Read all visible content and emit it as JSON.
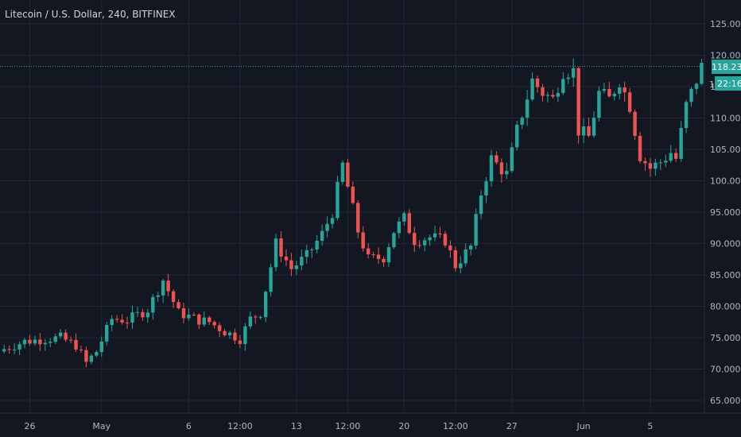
{
  "header": {
    "symbol_line": "Litecoin / U.S. Dollar, 240, BITFINEX"
  },
  "price_axis": {
    "last_price_label": "118.230",
    "countdown_label": "22:16",
    "countdown_partial_tick": "1"
  },
  "colors": {
    "background": "#131722",
    "grid": "#232734",
    "axis_text": "#b2b5be",
    "up": "#26a69a",
    "down": "#ef5350",
    "last_price_line": "#26a69a"
  },
  "chart_data": {
    "type": "candlestick",
    "title": "Litecoin / U.S. Dollar, 240, BITFINEX",
    "ylim": [
      63,
      127
    ],
    "y_ticks": [
      "125.000",
      "120.000",
      "115.000",
      "110.000",
      "105.000",
      "100.000",
      "95.000",
      "90.000",
      "85.000",
      "80.000",
      "75.000",
      "70.000",
      "65.000"
    ],
    "y_tick_values": [
      125,
      120,
      115,
      110,
      105,
      100,
      95,
      90,
      85,
      80,
      75,
      70,
      65
    ],
    "x_ticks": [
      "26",
      "May",
      "6",
      "12:00",
      "13",
      "12:00",
      "20",
      "12:00",
      "27",
      "Jun",
      "5"
    ],
    "x_tick_index": [
      5,
      19,
      36,
      46,
      57,
      67,
      78,
      88,
      99,
      113,
      126
    ],
    "grid": true,
    "last_price": 118.23,
    "close_anchors": [
      [
        0,
        73.2
      ],
      [
        4,
        74.4
      ],
      [
        8,
        74.8
      ],
      [
        11,
        75.0
      ],
      [
        14,
        73.8
      ],
      [
        16,
        71.0
      ],
      [
        18,
        72.8
      ],
      [
        21,
        78.0
      ],
      [
        24,
        77.8
      ],
      [
        28,
        79.5
      ],
      [
        31,
        84.2
      ],
      [
        34,
        79.0
      ],
      [
        38,
        77.8
      ],
      [
        40,
        77.5
      ],
      [
        43,
        76.0
      ],
      [
        46,
        74.8
      ],
      [
        48,
        78.0
      ],
      [
        50,
        79.0
      ],
      [
        53,
        90.0
      ],
      [
        56,
        86.0
      ],
      [
        59,
        88.0
      ],
      [
        62,
        91.5
      ],
      [
        64,
        95.0
      ],
      [
        66,
        102.5
      ],
      [
        69,
        92.0
      ],
      [
        71,
        87.5
      ],
      [
        74,
        87.8
      ],
      [
        76,
        92.0
      ],
      [
        78,
        94.0
      ],
      [
        80,
        90.5
      ],
      [
        83,
        91.0
      ],
      [
        86,
        90.5
      ],
      [
        88,
        86.5
      ],
      [
        91,
        89.5
      ],
      [
        93,
        98.0
      ],
      [
        95,
        103.5
      ],
      [
        98,
        101.0
      ],
      [
        100,
        108.0
      ],
      [
        103,
        116.0
      ],
      [
        105,
        114.0
      ],
      [
        107,
        113.0
      ],
      [
        109,
        117.5
      ],
      [
        111,
        117.5
      ],
      [
        112,
        108.0
      ],
      [
        114,
        107.0
      ],
      [
        116,
        114.0
      ],
      [
        118,
        113.0
      ],
      [
        120,
        116.0
      ],
      [
        122,
        112.0
      ],
      [
        124,
        104.0
      ],
      [
        126,
        102.0
      ],
      [
        128,
        103.0
      ],
      [
        130,
        104.5
      ],
      [
        131,
        103.5
      ],
      [
        133,
        112.0
      ],
      [
        135,
        116.0
      ],
      [
        136,
        118.2
      ]
    ]
  }
}
